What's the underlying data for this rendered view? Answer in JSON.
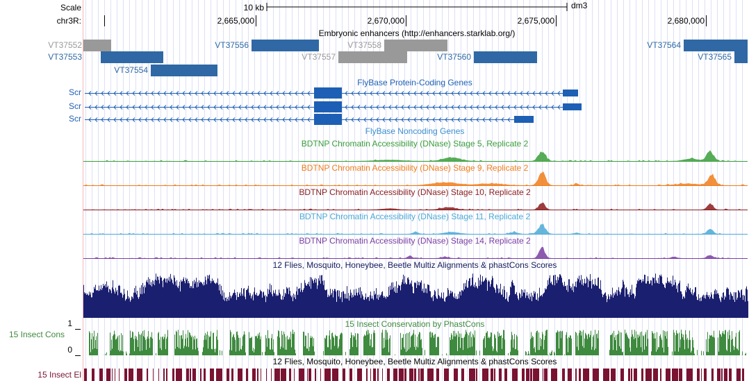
{
  "ruler": {
    "scale_label": "Scale",
    "scale_text": "10 kb",
    "assembly": "dm3",
    "chrom_label": "chr3R:",
    "positions": [
      "2,665,000",
      "2,670,000",
      "2,675,000",
      "2,680,000"
    ]
  },
  "enhancers": {
    "title": "Embryonic enhancers (http://enhancers.starklab.org/)",
    "items": [
      "VT37552",
      "VT37553",
      "VT37554",
      "VT37556",
      "VT37558",
      "VT37557",
      "VT37560",
      "VT37564",
      "VT37565"
    ]
  },
  "genes": {
    "title": "FlyBase Protein-Coding Genes",
    "rows": [
      "Scr",
      "Scr",
      "Scr"
    ]
  },
  "noncoding": {
    "title": "FlyBase Noncoding Genes"
  },
  "dnase": [
    "BDTNP Chromatin Accessibility (DNase) Stage 5, Replicate 2",
    "BDTNP Chromatin Accessibility (DNase) Stage 9, Replicate 2",
    "BDTNP Chromatin Accessibility (DNase) Stage 10, Replicate 2",
    "BDTNP Chromatin Accessibility (DNase) Stage 11, Replicate 2",
    "BDTNP Chromatin Accessibility (DNase) Stage 14, Replicate 2"
  ],
  "multiz": {
    "title": "12 Flies, Mosquito, Honeybee, Beetle Multiz Alignments & phastCons Scores"
  },
  "phastcons": {
    "label": "15 Insect Cons",
    "title": "15 Insect Conservation by PhastCons",
    "max": "1",
    "min": "0"
  },
  "elements": {
    "label": "15 Insect El",
    "title": "12 Flies, Mosquito, Honeybee, Beetle Multiz Alignments & phastCons Scores"
  }
}
